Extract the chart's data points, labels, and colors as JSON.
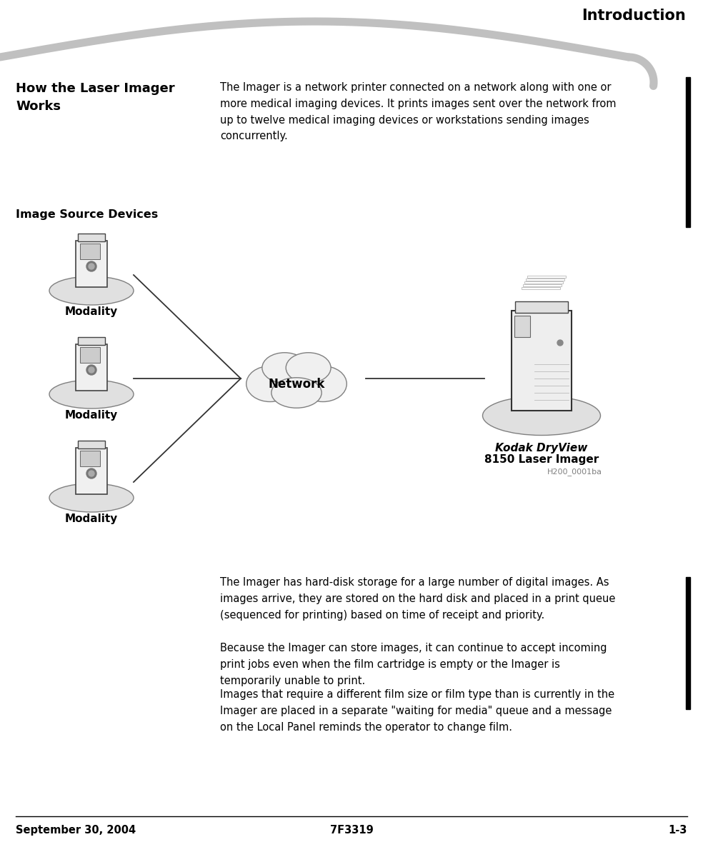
{
  "title": "Introduction",
  "heading": "How the Laser Imager\nWorks",
  "para1": "The Imager is a network printer connected on a network along with one or\nmore medical imaging devices. It prints images sent over the network from\nup to twelve medical imaging devices or workstations sending images\nconcurrently.",
  "diagram_label": "Image Source Devices",
  "modality_label": "Modality",
  "network_label": "Network",
  "imager_label1": "Kodak DryView",
  "imager_label2": "8150 Laser Imager",
  "image_ref": "H200_0001ba",
  "para2": "The Imager has hard-disk storage for a large number of digital images. As\nimages arrive, they are stored on the hard disk and placed in a print queue\n(sequenced for printing) based on time of receipt and priority.",
  "para3": "Because the Imager can store images, it can continue to accept incoming\nprint jobs even when the film cartridge is empty or the Imager is\ntemporarily unable to print.",
  "para4": "Images that require a different film size or film type than is currently in the\nImager are placed in a separate \"waiting for media\" queue and a message\non the Local Panel reminds the operator to change film.",
  "footer_left": "September 30, 2004",
  "footer_center": "7F3319",
  "footer_right": "1-3",
  "bg_color": "#ffffff",
  "text_color": "#000000",
  "gray_color": "#c0c0c0",
  "light_gray": "#d3d3d3",
  "dark_gray": "#808080",
  "bar_color": "#000000",
  "ellipse_fill": "#e0e0e0",
  "network_fill": "#f0f0f0",
  "device_body": "#f0f0f0",
  "device_panel": "#e0e0e0",
  "device_screen": "#cccccc"
}
